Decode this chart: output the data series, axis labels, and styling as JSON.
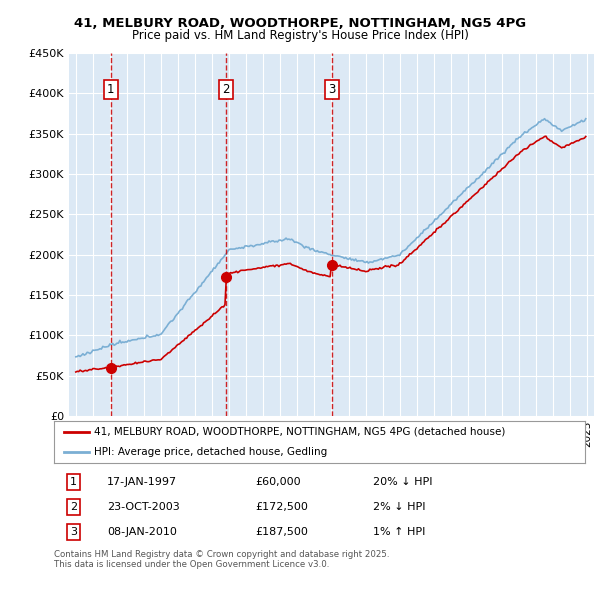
{
  "title": "41, MELBURY ROAD, WOODTHORPE, NOTTINGHAM, NG5 4PG",
  "subtitle": "Price paid vs. HM Land Registry's House Price Index (HPI)",
  "background_color": "#dce9f5",
  "plot_bg_color": "#dce9f5",
  "fig_bg_color": "#ffffff",
  "red_line_color": "#cc0000",
  "blue_line_color": "#7bafd4",
  "purchase_marker_color": "#cc0000",
  "vline_color": "#cc0000",
  "ylim": [
    0,
    450000
  ],
  "yticks": [
    0,
    50000,
    100000,
    150000,
    200000,
    250000,
    300000,
    350000,
    400000,
    450000
  ],
  "ytick_labels": [
    "£0",
    "£50K",
    "£100K",
    "£150K",
    "£200K",
    "£250K",
    "£300K",
    "£350K",
    "£400K",
    "£450K"
  ],
  "xmin": 1994.6,
  "xmax": 2025.4,
  "purchases": [
    {
      "number": 1,
      "year": 1997.04,
      "price": 60000,
      "label": "1"
    },
    {
      "number": 2,
      "year": 2003.81,
      "price": 172500,
      "label": "2"
    },
    {
      "number": 3,
      "year": 2010.03,
      "price": 187500,
      "label": "3"
    }
  ],
  "legend_line1": "41, MELBURY ROAD, WOODTHORPE, NOTTINGHAM, NG5 4PG (detached house)",
  "legend_line2": "HPI: Average price, detached house, Gedling",
  "table_rows": [
    {
      "num": "1",
      "date": "17-JAN-1997",
      "price": "£60,000",
      "hpi": "20% ↓ HPI"
    },
    {
      "num": "2",
      "date": "23-OCT-2003",
      "price": "£172,500",
      "hpi": "2% ↓ HPI"
    },
    {
      "num": "3",
      "date": "08-JAN-2010",
      "price": "£187,500",
      "hpi": "1% ↑ HPI"
    }
  ],
  "footnote": "Contains HM Land Registry data © Crown copyright and database right 2025.\nThis data is licensed under the Open Government Licence v3.0.",
  "grid_color": "#ffffff",
  "title_color": "#000000",
  "fontfamily": "DejaVu Sans"
}
